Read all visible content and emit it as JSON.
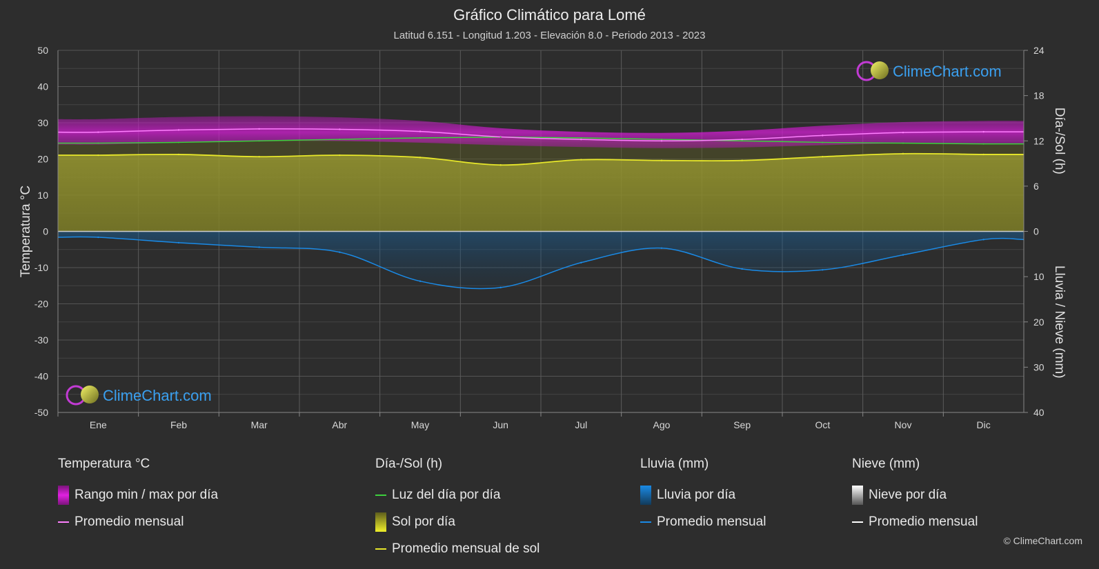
{
  "title": "Gráfico Climático para Lomé",
  "subtitle": "Latitud 6.151 - Longitud 1.203 - Elevación 8.0 - Periodo 2013 - 2023",
  "watermark": "ClimeChart.com",
  "copyright": "© ClimeChart.com",
  "colors": {
    "background": "#2d2d2d",
    "temp_range": "#d11ed1",
    "temp_avg": "#ff80ff",
    "daylight": "#3dd13d",
    "sun_fill": "#8f8f2a",
    "sun_avg": "#e8e82a",
    "rain": "#1a8ae6",
    "snow": "#ffffff"
  },
  "chart_data": {
    "type": "line",
    "categories": [
      "Ene",
      "Feb",
      "Mar",
      "Abr",
      "May",
      "Jun",
      "Jul",
      "Ago",
      "Sep",
      "Oct",
      "Nov",
      "Dic"
    ],
    "y_left": {
      "label": "Temperatura °C",
      "range": [
        -50,
        50
      ],
      "ticks": [
        50,
        40,
        30,
        20,
        10,
        0,
        -10,
        -20,
        -30,
        -40,
        -50
      ]
    },
    "y_right_top": {
      "label": "Día-/Sol (h)",
      "range": [
        0,
        24
      ],
      "ticks": [
        24,
        18,
        12,
        6,
        0
      ]
    },
    "y_right_bottom": {
      "label": "Lluvia / Nieve (mm)",
      "range": [
        0,
        40
      ],
      "ticks": [
        0,
        10,
        20,
        30,
        40
      ]
    },
    "grid": true,
    "series": [
      {
        "name": "Rango min / max por día",
        "kind": "band",
        "low": [
          24.0,
          24.5,
          25.0,
          25.0,
          24.5,
          23.8,
          23.3,
          23.0,
          23.2,
          23.8,
          24.3,
          24.2
        ],
        "high": [
          31.0,
          31.6,
          31.8,
          31.5,
          30.5,
          28.5,
          27.5,
          27.2,
          27.8,
          29.2,
          30.2,
          30.5
        ]
      },
      {
        "name": "Promedio mensual",
        "kind": "temp_avg",
        "values": [
          27.4,
          28.0,
          28.3,
          28.2,
          27.6,
          26.1,
          25.4,
          25.0,
          25.4,
          26.5,
          27.3,
          27.5
        ]
      },
      {
        "name": "Luz del día por día",
        "kind": "daylight_hours",
        "values": [
          11.7,
          11.8,
          12.0,
          12.2,
          12.4,
          12.5,
          12.4,
          12.2,
          12.0,
          11.8,
          11.7,
          11.6
        ]
      },
      {
        "name": "Promedio mensual de sol",
        "kind": "sun_hours",
        "values": [
          10.1,
          10.2,
          9.9,
          10.1,
          9.8,
          8.8,
          9.5,
          9.4,
          9.4,
          9.9,
          10.3,
          10.2
        ]
      },
      {
        "name": "Promedio mensual",
        "kind": "rain_mm",
        "values": [
          1.3,
          2.5,
          3.5,
          4.6,
          11.0,
          12.4,
          6.9,
          3.7,
          8.3,
          8.5,
          5.2,
          1.8
        ]
      },
      {
        "name": "Promedio mensual",
        "kind": "snow_mm",
        "values": [
          0,
          0,
          0,
          0,
          0,
          0,
          0,
          0,
          0,
          0,
          0,
          0
        ]
      }
    ]
  },
  "legend": {
    "temperature": {
      "title": "Temperatura °C",
      "range": "Rango min / max por día",
      "avg": "Promedio mensual"
    },
    "sun": {
      "title": "Día-/Sol (h)",
      "daylight": "Luz del día por día",
      "sun": "Sol por día",
      "avg": "Promedio mensual de sol"
    },
    "rain": {
      "title": "Lluvia (mm)",
      "per_day": "Lluvia por día",
      "avg": "Promedio mensual"
    },
    "snow": {
      "title": "Nieve (mm)",
      "per_day": "Nieve por día",
      "avg": "Promedio mensual"
    }
  }
}
